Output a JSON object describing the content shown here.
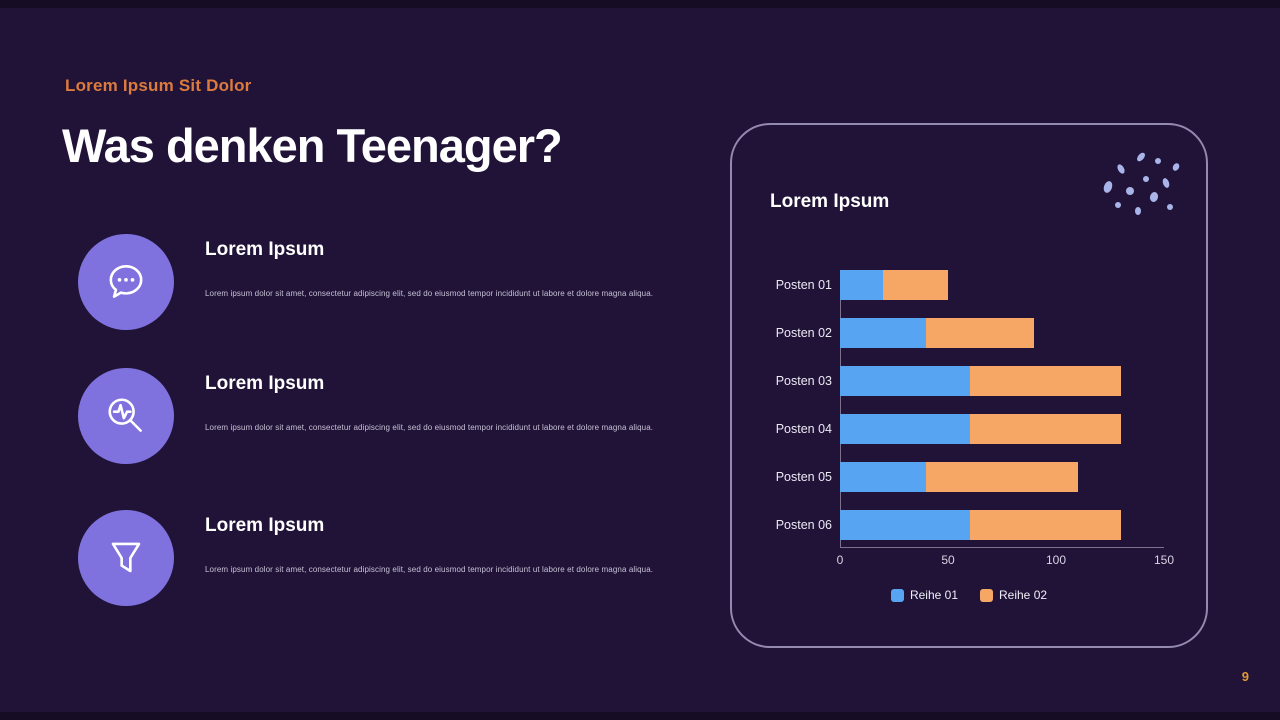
{
  "page": {
    "subtitle": "Lorem Ipsum Sit Dolor",
    "title": "Was denken Teenager?",
    "page_number": "9"
  },
  "features": [
    {
      "icon": "chat-dots-icon",
      "title": "Lorem Ipsum",
      "body": "Lorem ipsum dolor sit amet, consectetur adipiscing elit, sed do eiusmod tempor incididunt ut labore et dolore magna aliqua."
    },
    {
      "icon": "search-pulse-icon",
      "title": "Lorem Ipsum",
      "body": "Lorem ipsum dolor sit amet, consectetur adipiscing elit, sed do eiusmod tempor incididunt ut labore et dolore magna aliqua."
    },
    {
      "icon": "funnel-icon",
      "title": "Lorem Ipsum",
      "body": "Lorem ipsum dolor sit amet, consectetur adipiscing elit, sed do eiusmod tempor incididunt ut labore et dolore magna aliqua."
    }
  ],
  "card": {
    "title": "Lorem Ipsum"
  },
  "chart_data": {
    "type": "bar",
    "orientation": "horizontal",
    "stacked": true,
    "title": "Lorem Ipsum",
    "categories": [
      "Posten 01",
      "Posten 02",
      "Posten 03",
      "Posten 04",
      "Posten 05",
      "Posten 06"
    ],
    "series": [
      {
        "name": "Reihe 01",
        "color": "#57A5F2",
        "values": [
          20,
          40,
          60,
          60,
          40,
          60
        ]
      },
      {
        "name": "Reihe 02",
        "color": "#F6A766",
        "values": [
          30,
          50,
          70,
          70,
          70,
          70
        ]
      }
    ],
    "xlim": [
      0,
      150
    ],
    "xticks": [
      0,
      50,
      100,
      150
    ],
    "grid": false,
    "legend_position": "bottom"
  },
  "colors": {
    "background": "#201337",
    "accent_orange": "#DD7B3E",
    "icon_circle_purple": "#7F72DE",
    "card_border": "#B1A8CD",
    "bar_blue": "#57A5F2",
    "bar_orange": "#F6A766",
    "confetti": "#A9B4E9"
  }
}
